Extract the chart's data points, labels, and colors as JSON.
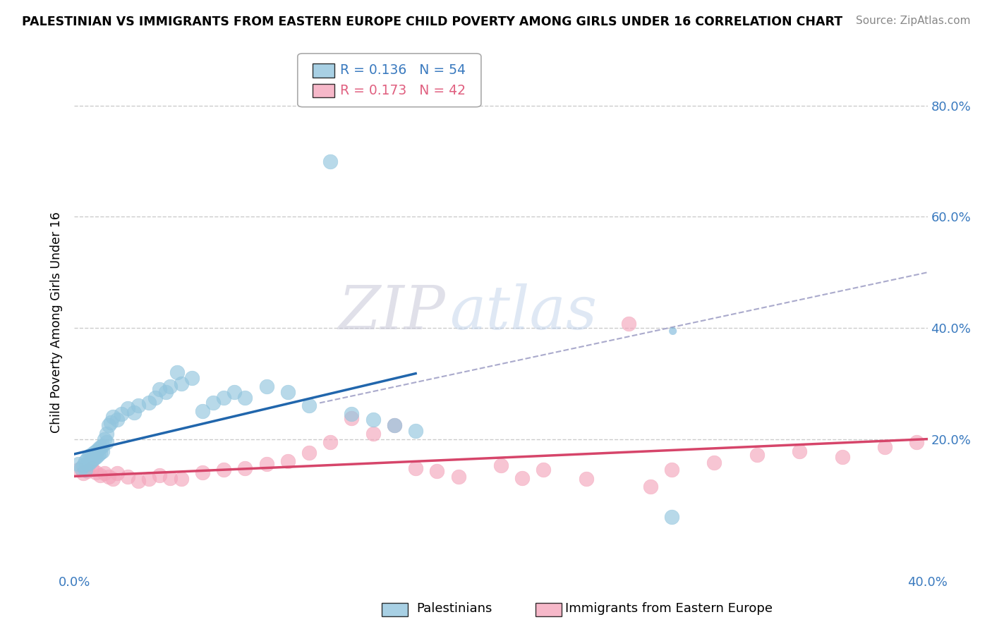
{
  "title": "PALESTINIAN VS IMMIGRANTS FROM EASTERN EUROPE CHILD POVERTY AMONG GIRLS UNDER 16 CORRELATION CHART",
  "source": "Source: ZipAtlas.com",
  "ylabel": "Child Poverty Among Girls Under 16",
  "xlim": [
    0.0,
    0.4
  ],
  "ylim": [
    -0.04,
    0.86
  ],
  "blue_color": "#92c5de",
  "pink_color": "#f4a6bc",
  "blue_line_color": "#2166ac",
  "pink_line_color": "#d6456a",
  "dashed_line_color": "#aaaacc",
  "background_color": "#ffffff",
  "grid_color": "#cccccc",
  "label1": "Palestinians",
  "label2": "Immigrants from Eastern Europe",
  "legend_text1": "R = 0.136   N = 54",
  "legend_text2": "R = 0.173   N = 42",
  "blue_x": [
    0.002,
    0.003,
    0.004,
    0.005,
    0.005,
    0.006,
    0.006,
    0.007,
    0.007,
    0.008,
    0.008,
    0.009,
    0.009,
    0.01,
    0.01,
    0.011,
    0.011,
    0.012,
    0.012,
    0.013,
    0.013,
    0.014,
    0.015,
    0.015,
    0.016,
    0.017,
    0.018,
    0.02,
    0.022,
    0.025,
    0.028,
    0.03,
    0.035,
    0.038,
    0.04,
    0.043,
    0.045,
    0.048,
    0.05,
    0.055,
    0.06,
    0.065,
    0.07,
    0.075,
    0.08,
    0.09,
    0.1,
    0.11,
    0.12,
    0.13,
    0.14,
    0.15,
    0.16,
    0.28
  ],
  "blue_y": [
    0.155,
    0.148,
    0.152,
    0.16,
    0.145,
    0.155,
    0.165,
    0.158,
    0.17,
    0.162,
    0.172,
    0.165,
    0.175,
    0.168,
    0.178,
    0.172,
    0.182,
    0.175,
    0.185,
    0.178,
    0.188,
    0.2,
    0.195,
    0.21,
    0.225,
    0.23,
    0.24,
    0.235,
    0.245,
    0.255,
    0.248,
    0.26,
    0.265,
    0.275,
    0.29,
    0.285,
    0.295,
    0.32,
    0.3,
    0.31,
    0.25,
    0.265,
    0.275,
    0.285,
    0.275,
    0.295,
    0.285,
    0.26,
    0.7,
    0.245,
    0.235,
    0.225,
    0.215,
    0.06
  ],
  "pink_x": [
    0.002,
    0.004,
    0.006,
    0.008,
    0.01,
    0.012,
    0.014,
    0.016,
    0.018,
    0.02,
    0.025,
    0.03,
    0.035,
    0.04,
    0.045,
    0.05,
    0.06,
    0.07,
    0.08,
    0.09,
    0.1,
    0.11,
    0.12,
    0.13,
    0.14,
    0.15,
    0.16,
    0.17,
    0.18,
    0.2,
    0.21,
    0.22,
    0.24,
    0.26,
    0.27,
    0.28,
    0.3,
    0.32,
    0.34,
    0.36,
    0.38,
    0.395
  ],
  "pink_y": [
    0.145,
    0.138,
    0.142,
    0.148,
    0.14,
    0.135,
    0.138,
    0.132,
    0.128,
    0.138,
    0.132,
    0.125,
    0.128,
    0.135,
    0.13,
    0.128,
    0.14,
    0.145,
    0.148,
    0.155,
    0.16,
    0.175,
    0.195,
    0.238,
    0.21,
    0.225,
    0.148,
    0.142,
    0.132,
    0.152,
    0.13,
    0.145,
    0.128,
    0.408,
    0.115,
    0.145,
    0.158,
    0.172,
    0.178,
    0.168,
    0.185,
    0.195
  ]
}
